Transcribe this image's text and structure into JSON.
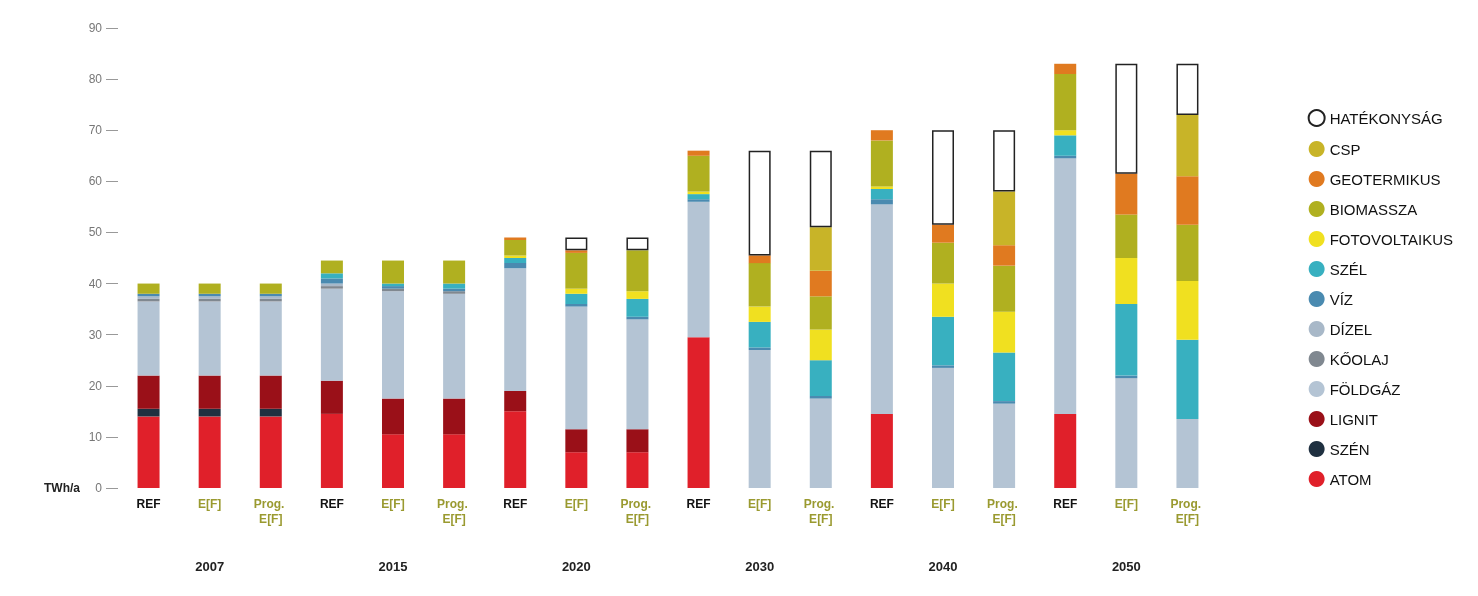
{
  "chart_data": {
    "type": "bar",
    "stacked": true,
    "ylabel": "TWh/a",
    "ylim": [
      0,
      90
    ],
    "yticks": [
      0,
      10,
      20,
      30,
      40,
      50,
      60,
      70,
      80,
      90
    ],
    "grid": false,
    "legend": "right",
    "categories": [
      "REF",
      "E[F]",
      "Prog. E[F]",
      "REF",
      "E[F]",
      "Prog. E[F]",
      "REF",
      "E[F]",
      "Prog. E[F]",
      "REF",
      "E[F]",
      "Prog. E[F]",
      "REF",
      "E[F]",
      "Prog. E[F]",
      "REF",
      "E[F]",
      "Prog. E[F]"
    ],
    "annotations": [
      "2007",
      "2015",
      "2020",
      "2030",
      "2040",
      "2050"
    ],
    "series": [
      {
        "name": "ATOM",
        "color": "#e0202a",
        "values": [
          14,
          14,
          14,
          14.5,
          10.5,
          10.5,
          15,
          7,
          7,
          29.5,
          0,
          0,
          14.5,
          0,
          0,
          14.5,
          0,
          0
        ]
      },
      {
        "name": "SZÉN",
        "color": "#1f3040",
        "values": [
          1.5,
          1.5,
          1.5,
          0,
          0,
          0,
          0,
          0,
          0,
          0,
          0,
          0,
          0,
          0,
          0,
          0,
          0,
          0
        ]
      },
      {
        "name": "LIGNIT",
        "color": "#9a1018",
        "values": [
          6.5,
          6.5,
          6.5,
          6.5,
          7,
          7,
          4,
          4.5,
          4.5,
          0,
          0,
          0,
          0,
          0,
          0,
          0,
          0,
          0
        ]
      },
      {
        "name": "FÖLDGÁZ",
        "color": "#b4c4d4",
        "values": [
          14.5,
          14.5,
          14.5,
          18,
          21,
          20.5,
          24,
          24,
          21.5,
          26.5,
          27,
          17.5,
          41,
          23.5,
          16.5,
          50,
          21.5,
          13.5
        ]
      },
      {
        "name": "KŐOLAJ",
        "color": "#808890",
        "values": [
          0.5,
          0.5,
          0.5,
          0.5,
          0.5,
          0.5,
          0,
          0,
          0,
          0,
          0,
          0,
          0,
          0,
          0,
          0,
          0,
          0
        ]
      },
      {
        "name": "DÍZEL",
        "color": "#a8b8c8",
        "values": [
          0.5,
          0.5,
          0.5,
          0.5,
          0,
          0,
          0,
          0,
          0,
          0,
          0,
          0,
          0,
          0,
          0,
          0,
          0,
          0
        ]
      },
      {
        "name": "VÍZ",
        "color": "#4a8ab0",
        "values": [
          0.5,
          0.5,
          0.5,
          1,
          0.5,
          0.5,
          1,
          0.5,
          0.5,
          0.5,
          0.5,
          0.5,
          1,
          0.5,
          0.5,
          0.5,
          0.5,
          0
        ]
      },
      {
        "name": "SZÉL",
        "color": "#38b0c0",
        "values": [
          0,
          0,
          0,
          1,
          0.5,
          1,
          1,
          2,
          3.5,
          1,
          5,
          7,
          2,
          9.5,
          9.5,
          4,
          14,
          15.5
        ]
      },
      {
        "name": "FOTOVOLTAIKUS",
        "color": "#f0e020",
        "values": [
          0,
          0,
          0,
          0,
          0,
          0,
          0.5,
          1,
          1.5,
          0.5,
          3,
          6,
          0.5,
          6.5,
          8,
          1,
          9,
          11.5
        ]
      },
      {
        "name": "BIOMASSZA",
        "color": "#b0b020",
        "values": [
          2,
          2,
          2,
          2.5,
          4.5,
          4.5,
          3,
          7,
          8,
          7,
          8.5,
          6.5,
          9,
          8,
          9,
          11,
          8.5,
          11
        ]
      },
      {
        "name": "GEOTERMIKUS",
        "color": "#e07a20",
        "values": [
          0,
          0,
          0,
          0,
          0,
          0,
          0.5,
          0.5,
          0,
          1,
          1.5,
          5,
          2,
          3.5,
          4,
          2,
          8,
          9.5
        ]
      },
      {
        "name": "CSP",
        "color": "#c8b428",
        "values": [
          0,
          0,
          0,
          0,
          0,
          0,
          0,
          0,
          0,
          0,
          0,
          8.5,
          0,
          0,
          10.5,
          0,
          0,
          12
        ]
      },
      {
        "name": "HATÉKONYSÁG",
        "color": "#ffffff",
        "values": [
          0,
          0,
          0,
          0,
          0,
          0,
          0,
          2.5,
          2.5,
          0,
          20.5,
          15,
          0,
          18.5,
          12,
          0,
          21.5,
          10
        ]
      }
    ]
  }
}
